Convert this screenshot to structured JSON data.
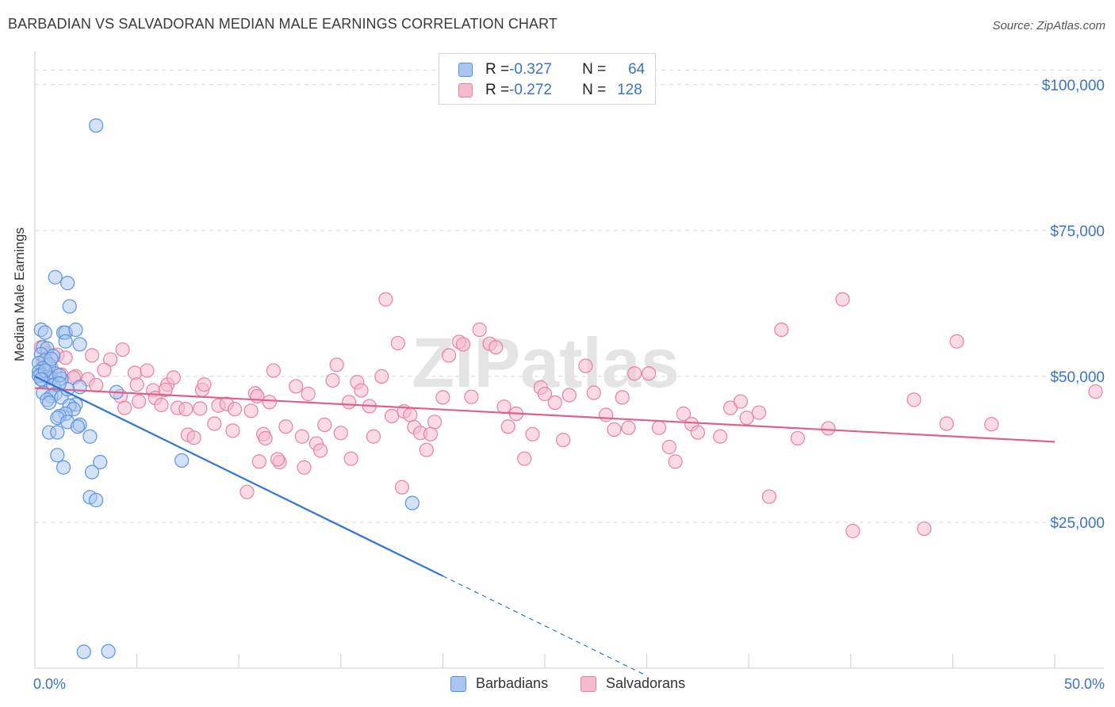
{
  "title": "BARBADIAN VS SALVADORAN MEDIAN MALE EARNINGS CORRELATION CHART",
  "source": "Source: ZipAtlas.com",
  "watermark": "ZIPatlas",
  "legend": {
    "rows": [
      {
        "r_label": "R = ",
        "r_value": "-0.327",
        "n_label": "N = ",
        "n_value": "64"
      },
      {
        "r_label": "R = ",
        "r_value": "-0.272",
        "n_label": "N = ",
        "n_value": "128"
      }
    ],
    "bottom": [
      "Barbadians",
      "Salvadorans"
    ]
  },
  "colors": {
    "blue": "#5b93e0",
    "blue_fill": "#a9c6f0",
    "blue_line": "#2f75d6",
    "pink": "#e9829f",
    "pink_fill": "#f5bccd",
    "pink_line": "#e0608a",
    "axis_text": "#3a73c8",
    "grid": "#d8d8d8"
  },
  "chart_data": {
    "type": "scatter",
    "title": "BARBADIAN VS SALVADORAN MEDIAN MALE EARNINGS CORRELATION CHART",
    "xlabel": "",
    "ylabel": "Median Male Earnings",
    "xlim": [
      0,
      50
    ],
    "ylim": [
      0,
      105000
    ],
    "x_tick_labels": [
      "0.0%",
      "50.0%"
    ],
    "y_ticks": [
      25000,
      50000,
      75000,
      100000
    ],
    "y_tick_labels": [
      "$25,000",
      "$50,000",
      "$75,000",
      "$100,000"
    ],
    "series": [
      {
        "name": "Barbadians",
        "r": -0.327,
        "n": 64,
        "trend": {
          "x0": 0,
          "y0": 50000,
          "x1": 20,
          "y1": 15800,
          "dash_to_x": 30
        },
        "points": [
          [
            3.0,
            93000
          ],
          [
            1.0,
            67000
          ],
          [
            1.6,
            66000
          ],
          [
            1.7,
            62000
          ],
          [
            0.3,
            58000
          ],
          [
            0.5,
            57500
          ],
          [
            1.4,
            57500
          ],
          [
            1.5,
            57500
          ],
          [
            2.0,
            58000
          ],
          [
            1.5,
            56000
          ],
          [
            2.2,
            55500
          ],
          [
            0.4,
            55000
          ],
          [
            0.6,
            54800
          ],
          [
            0.3,
            53800
          ],
          [
            0.9,
            53500
          ],
          [
            0.5,
            52800
          ],
          [
            0.2,
            52300
          ],
          [
            0.7,
            52000
          ],
          [
            0.4,
            51400
          ],
          [
            0.2,
            50800
          ],
          [
            1.0,
            50500
          ],
          [
            0.3,
            50300
          ],
          [
            0.6,
            49900
          ],
          [
            0.8,
            49700
          ],
          [
            1.3,
            49600
          ],
          [
            0.4,
            49300
          ],
          [
            0.9,
            48500
          ],
          [
            2.2,
            48200
          ],
          [
            4.0,
            47300
          ],
          [
            0.4,
            47200
          ],
          [
            1.0,
            47000
          ],
          [
            0.8,
            46600
          ],
          [
            1.3,
            46400
          ],
          [
            0.6,
            46000
          ],
          [
            0.7,
            45500
          ],
          [
            2.0,
            45200
          ],
          [
            1.7,
            45000
          ],
          [
            1.9,
            44400
          ],
          [
            1.5,
            43600
          ],
          [
            1.2,
            43200
          ],
          [
            1.1,
            42900
          ],
          [
            1.6,
            42200
          ],
          [
            2.2,
            41700
          ],
          [
            2.1,
            41400
          ],
          [
            0.7,
            40400
          ],
          [
            1.1,
            40400
          ],
          [
            2.7,
            39700
          ],
          [
            1.1,
            36500
          ],
          [
            3.2,
            35300
          ],
          [
            7.2,
            35600
          ],
          [
            1.4,
            34400
          ],
          [
            2.8,
            33600
          ],
          [
            2.7,
            29300
          ],
          [
            3.0,
            28800
          ],
          [
            18.5,
            28300
          ],
          [
            2.4,
            2800
          ],
          [
            3.6,
            2900
          ],
          [
            0.2,
            50100
          ],
          [
            0.5,
            51000
          ],
          [
            1.2,
            50200
          ],
          [
            0.8,
            53000
          ],
          [
            1.6,
            47800
          ],
          [
            0.3,
            49500
          ],
          [
            1.2,
            48800
          ]
        ]
      },
      {
        "name": "Salvadorans",
        "r": -0.272,
        "n": 128,
        "trend": {
          "x0": 0,
          "y0": 48000,
          "x1": 50,
          "y1": 38800
        },
        "points": [
          [
            0.3,
            55000
          ],
          [
            0.6,
            54000
          ],
          [
            1.1,
            53700
          ],
          [
            1.5,
            53200
          ],
          [
            2.0,
            50000
          ],
          [
            2.8,
            53600
          ],
          [
            4.3,
            54600
          ],
          [
            3.7,
            52900
          ],
          [
            3.4,
            51100
          ],
          [
            0.4,
            52500
          ],
          [
            0.8,
            51500
          ],
          [
            1.3,
            50300
          ],
          [
            1.9,
            49800
          ],
          [
            2.6,
            49500
          ],
          [
            3.0,
            48500
          ],
          [
            4.9,
            50600
          ],
          [
            5.5,
            51000
          ],
          [
            6.5,
            48600
          ],
          [
            6.8,
            49800
          ],
          [
            5.0,
            48600
          ],
          [
            5.8,
            47600
          ],
          [
            4.2,
            46600
          ],
          [
            4.4,
            44600
          ],
          [
            5.1,
            45700
          ],
          [
            5.9,
            46300
          ],
          [
            6.2,
            45100
          ],
          [
            7.0,
            44600
          ],
          [
            7.4,
            44400
          ],
          [
            6.4,
            47700
          ],
          [
            7.5,
            40000
          ],
          [
            7.8,
            39500
          ],
          [
            8.2,
            47700
          ],
          [
            8.3,
            48600
          ],
          [
            8.1,
            44500
          ],
          [
            9.0,
            45000
          ],
          [
            9.4,
            45300
          ],
          [
            9.8,
            44400
          ],
          [
            8.8,
            41900
          ],
          [
            9.7,
            40700
          ],
          [
            10.6,
            44100
          ],
          [
            10.8,
            47100
          ],
          [
            10.9,
            46600
          ],
          [
            11.5,
            45600
          ],
          [
            11.0,
            35400
          ],
          [
            11.2,
            40100
          ],
          [
            12.0,
            35300
          ],
          [
            11.3,
            39400
          ],
          [
            12.3,
            41400
          ],
          [
            11.9,
            35800
          ],
          [
            10.4,
            30200
          ],
          [
            12.8,
            48300
          ],
          [
            11.7,
            51000
          ],
          [
            13.4,
            47000
          ],
          [
            13.1,
            39700
          ],
          [
            13.8,
            38500
          ],
          [
            13.2,
            34400
          ],
          [
            14.2,
            41700
          ],
          [
            14.0,
            37300
          ],
          [
            14.8,
            52000
          ],
          [
            14.6,
            49300
          ],
          [
            15.0,
            40300
          ],
          [
            15.4,
            45600
          ],
          [
            15.8,
            49000
          ],
          [
            16.0,
            47600
          ],
          [
            16.4,
            44900
          ],
          [
            15.5,
            35900
          ],
          [
            16.6,
            39700
          ],
          [
            17.0,
            50000
          ],
          [
            17.5,
            43200
          ],
          [
            17.8,
            55700
          ],
          [
            18.1,
            44000
          ],
          [
            17.2,
            63200
          ],
          [
            18.4,
            43400
          ],
          [
            18.6,
            41300
          ],
          [
            18.9,
            40300
          ],
          [
            19.2,
            37400
          ],
          [
            19.4,
            40100
          ],
          [
            19.6,
            42200
          ],
          [
            18.0,
            31000
          ],
          [
            20.0,
            46400
          ],
          [
            20.3,
            53600
          ],
          [
            20.8,
            55900
          ],
          [
            21.0,
            55500
          ],
          [
            21.4,
            46500
          ],
          [
            21.8,
            58000
          ],
          [
            22.3,
            55600
          ],
          [
            22.6,
            55000
          ],
          [
            23.0,
            44800
          ],
          [
            23.2,
            41400
          ],
          [
            23.6,
            43600
          ],
          [
            24.0,
            35900
          ],
          [
            24.4,
            40100
          ],
          [
            24.8,
            48100
          ],
          [
            25.0,
            47000
          ],
          [
            25.5,
            45500
          ],
          [
            25.9,
            39100
          ],
          [
            26.2,
            46800
          ],
          [
            27.0,
            51800
          ],
          [
            27.4,
            47200
          ],
          [
            28.0,
            43400
          ],
          [
            28.4,
            40900
          ],
          [
            28.8,
            46400
          ],
          [
            29.1,
            41200
          ],
          [
            29.4,
            50500
          ],
          [
            30.1,
            50500
          ],
          [
            30.6,
            41200
          ],
          [
            31.1,
            37900
          ],
          [
            31.4,
            35400
          ],
          [
            31.8,
            43600
          ],
          [
            32.2,
            41800
          ],
          [
            32.5,
            40400
          ],
          [
            33.6,
            39700
          ],
          [
            34.1,
            44600
          ],
          [
            34.6,
            45700
          ],
          [
            34.9,
            42900
          ],
          [
            35.5,
            43800
          ],
          [
            36.0,
            29400
          ],
          [
            36.6,
            58000
          ],
          [
            37.4,
            39400
          ],
          [
            38.9,
            41100
          ],
          [
            39.6,
            63200
          ],
          [
            40.1,
            23500
          ],
          [
            43.1,
            46000
          ],
          [
            43.6,
            23900
          ],
          [
            44.7,
            41900
          ],
          [
            45.2,
            56000
          ],
          [
            46.9,
            41800
          ],
          [
            52.0,
            47400
          ]
        ]
      }
    ]
  }
}
